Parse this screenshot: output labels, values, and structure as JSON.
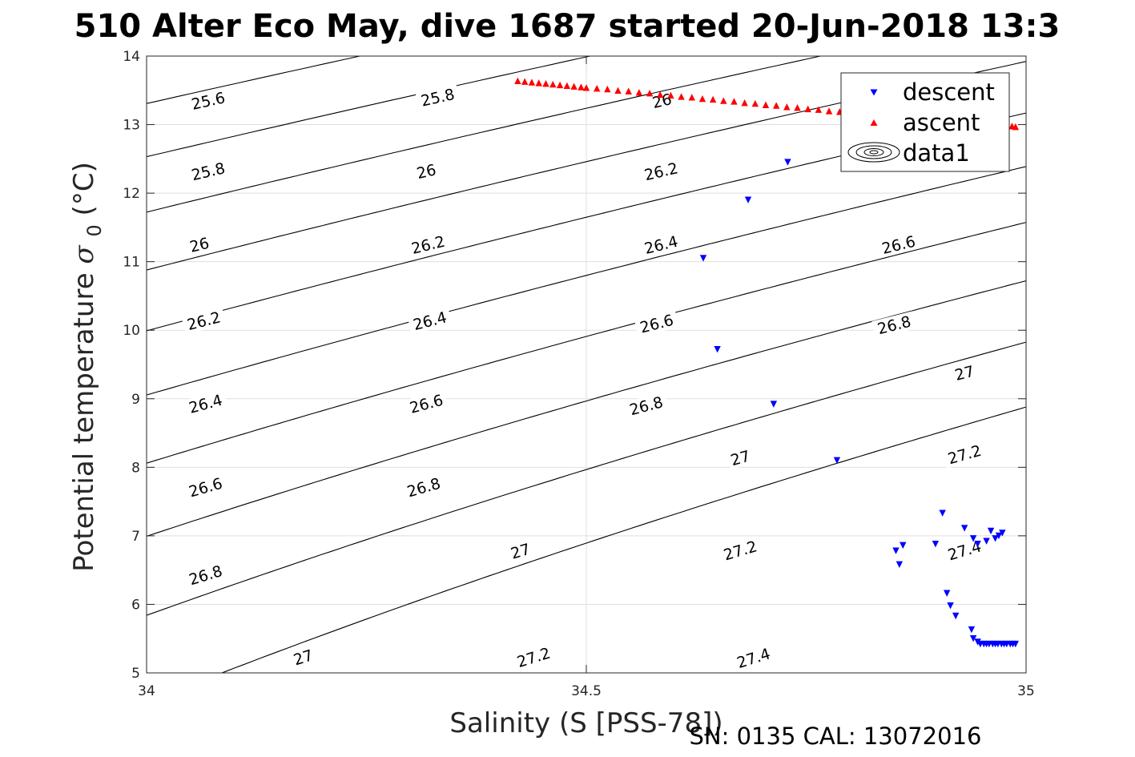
{
  "chart_data": {
    "type": "scatter",
    "title": "510 Alter Eco May, dive 1687 started 20-Jun-2018 13:3",
    "xlabel": "Salinity (S [PSS-78])",
    "ylabel": "Potential temperature",
    "ylabel_symbol": "σ",
    "ylabel_subscript": "0",
    "ylabel_unit": "(°C)",
    "footer": "SN: 0135  CAL: 13072016",
    "xlim": [
      34,
      35
    ],
    "ylim": [
      5,
      14
    ],
    "xticks": [
      34,
      34.5,
      35
    ],
    "xtick_labels": [
      "34",
      "34.5",
      "35"
    ],
    "yticks": [
      5,
      6,
      7,
      8,
      9,
      10,
      11,
      12,
      13,
      14
    ],
    "ytick_labels": [
      "5",
      "6",
      "7",
      "8",
      "9",
      "10",
      "11",
      "12",
      "13",
      "14"
    ],
    "grid": true,
    "legend_position": "top-right",
    "contour_levels": [
      25.6,
      25.8,
      26,
      26.2,
      26.4,
      26.6,
      26.8,
      27,
      27.2,
      27.4
    ],
    "contour_labels": [
      {
        "text": "25.6",
        "x": 34.07,
        "y": 13.35
      },
      {
        "text": "25.8",
        "x": 34.331,
        "y": 13.4
      },
      {
        "text": "26",
        "x": 34.586,
        "y": 13.35
      },
      {
        "text": "25.8",
        "x": 34.07,
        "y": 12.32
      },
      {
        "text": "26",
        "x": 34.318,
        "y": 12.32
      },
      {
        "text": "26.2",
        "x": 34.585,
        "y": 12.32
      },
      {
        "text": "26",
        "x": 34.06,
        "y": 11.25
      },
      {
        "text": "26.2",
        "x": 34.32,
        "y": 11.25
      },
      {
        "text": "26.4",
        "x": 34.585,
        "y": 11.25
      },
      {
        "text": "26.6",
        "x": 34.855,
        "y": 11.25
      },
      {
        "text": "26.2",
        "x": 34.065,
        "y": 10.14
      },
      {
        "text": "26.4",
        "x": 34.322,
        "y": 10.14
      },
      {
        "text": "26.6",
        "x": 34.58,
        "y": 10.1
      },
      {
        "text": "26.8",
        "x": 34.85,
        "y": 10.08
      },
      {
        "text": "26.4",
        "x": 34.067,
        "y": 8.93
      },
      {
        "text": "26.6",
        "x": 34.318,
        "y": 8.93
      },
      {
        "text": "26.8",
        "x": 34.568,
        "y": 8.9
      },
      {
        "text": "27",
        "x": 34.93,
        "y": 9.38
      },
      {
        "text": "26.6",
        "x": 34.067,
        "y": 7.71
      },
      {
        "text": "26.8",
        "x": 34.315,
        "y": 7.71
      },
      {
        "text": "27",
        "x": 34.675,
        "y": 8.14
      },
      {
        "text": "27.2",
        "x": 34.93,
        "y": 8.19
      },
      {
        "text": "26.8",
        "x": 34.067,
        "y": 6.43
      },
      {
        "text": "27",
        "x": 34.425,
        "y": 6.78
      },
      {
        "text": "27.2",
        "x": 34.675,
        "y": 6.79
      },
      {
        "text": "27.4",
        "x": 34.93,
        "y": 6.79
      },
      {
        "text": "27",
        "x": 34.178,
        "y": 5.23
      },
      {
        "text": "27.2",
        "x": 34.44,
        "y": 5.23
      },
      {
        "text": "27.4",
        "x": 34.69,
        "y": 5.22
      }
    ],
    "series": [
      {
        "name": "descent",
        "marker": "triangle-down",
        "color": "#0000ff",
        "x": [
          34.729,
          34.684,
          34.633,
          34.649,
          34.713,
          34.785,
          34.856,
          34.852,
          34.86,
          34.897,
          34.905,
          34.93,
          34.945,
          34.955,
          34.94,
          34.96,
          34.973,
          34.969,
          34.965,
          34.91,
          34.914,
          34.92,
          34.938,
          34.94,
          34.945,
          34.948,
          34.952,
          34.955,
          34.958,
          34.962,
          34.965,
          34.968,
          34.972,
          34.975,
          34.978,
          34.982,
          34.985,
          34.988
        ],
        "y": [
          12.45,
          11.9,
          11.05,
          9.72,
          8.92,
          8.1,
          6.58,
          6.78,
          6.86,
          6.88,
          7.33,
          7.11,
          6.88,
          6.92,
          6.96,
          7.07,
          7.04,
          7.0,
          6.96,
          6.16,
          5.98,
          5.83,
          5.63,
          5.5,
          5.45,
          5.42,
          5.42,
          5.42,
          5.42,
          5.42,
          5.42,
          5.42,
          5.42,
          5.42,
          5.42,
          5.42,
          5.42,
          5.42
        ]
      },
      {
        "name": "ascent",
        "marker": "triangle-up",
        "color": "#ff0000",
        "x": [
          34.422,
          34.43,
          34.438,
          34.446,
          34.454,
          34.462,
          34.47,
          34.478,
          34.486,
          34.494,
          34.5,
          34.512,
          34.524,
          34.536,
          34.548,
          34.56,
          34.572,
          34.584,
          34.596,
          34.608,
          34.62,
          34.632,
          34.644,
          34.656,
          34.668,
          34.68,
          34.692,
          34.704,
          34.716,
          34.728,
          34.74,
          34.752,
          34.764,
          34.776,
          34.788,
          34.8,
          34.812,
          34.824,
          34.836,
          34.848,
          34.86,
          34.872,
          34.884,
          34.896,
          34.908,
          34.92,
          34.932,
          34.944,
          34.956,
          34.968,
          34.978,
          34.984,
          34.988
        ],
        "y": [
          13.64,
          13.63,
          13.62,
          13.61,
          13.6,
          13.59,
          13.58,
          13.57,
          13.56,
          13.55,
          13.54,
          13.53,
          13.52,
          13.5,
          13.49,
          13.47,
          13.46,
          13.44,
          13.43,
          13.41,
          13.4,
          13.38,
          13.37,
          13.35,
          13.34,
          13.32,
          13.31,
          13.29,
          13.28,
          13.26,
          13.25,
          13.23,
          13.22,
          13.2,
          13.19,
          13.17,
          13.16,
          13.14,
          13.13,
          13.11,
          13.1,
          13.08,
          13.07,
          13.05,
          13.04,
          13.02,
          13.01,
          13.0,
          12.99,
          12.98,
          12.98,
          12.98,
          12.97
        ]
      },
      {
        "name": "data1",
        "marker": "contour",
        "color": "#000000"
      }
    ]
  }
}
